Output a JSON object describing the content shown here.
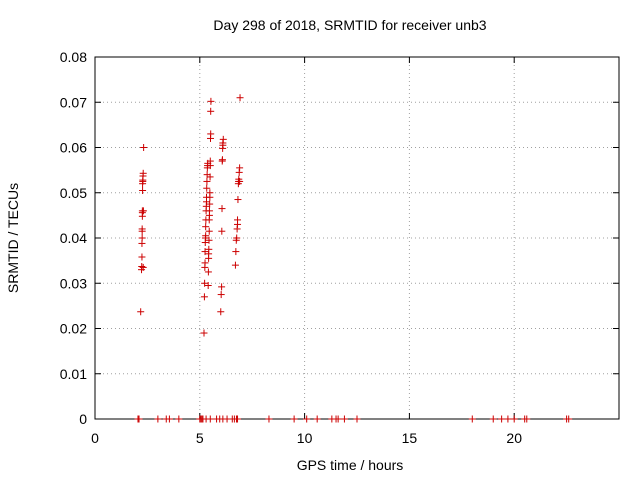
{
  "chart_data": {
    "type": "scatter",
    "title": "Day 298 of 2018, SRMTID for receiver unb3",
    "xlabel": "GPS time / hours",
    "ylabel": "SRMTID / TECUs",
    "xlim": [
      0,
      25
    ],
    "ylim": [
      0,
      0.08
    ],
    "x_ticks": [
      0,
      5,
      10,
      15,
      20
    ],
    "x_tick_labels": [
      "0",
      "5",
      "10",
      "15",
      "20"
    ],
    "y_ticks": [
      0,
      0.01,
      0.02,
      0.03,
      0.04,
      0.05,
      0.06,
      0.07,
      0.08
    ],
    "y_tick_labels": [
      "0",
      "0.01",
      "0.02",
      "0.03",
      "0.04",
      "0.05",
      "0.06",
      "0.07",
      "0.08"
    ],
    "grid": true,
    "marker": "+",
    "color": "#cc0000",
    "series": [
      {
        "name": "SRMTID",
        "x": [
          2.18,
          2.22,
          2.23,
          2.24,
          2.24,
          2.25,
          2.25,
          2.25,
          2.26,
          2.26,
          2.26,
          2.27,
          2.27,
          2.28,
          2.28,
          2.29,
          2.3,
          2.3,
          2.31,
          2.32,
          5.2,
          5.22,
          5.23,
          5.24,
          5.25,
          5.25,
          5.26,
          5.27,
          5.28,
          5.28,
          5.29,
          5.3,
          5.31,
          5.32,
          5.32,
          5.33,
          5.34,
          5.35,
          5.36,
          5.37,
          5.38,
          5.4,
          5.41,
          5.42,
          5.42,
          5.43,
          5.44,
          5.45,
          5.45,
          5.46,
          5.46,
          5.47,
          5.48,
          5.48,
          5.49,
          5.5,
          5.5,
          5.51,
          5.52,
          5.52,
          5.53,
          6.0,
          6.02,
          6.04,
          6.05,
          6.06,
          6.07,
          6.08,
          6.09,
          6.1,
          6.1,
          6.12,
          6.7,
          6.72,
          6.74,
          6.76,
          6.78,
          6.8,
          6.8,
          6.82,
          6.84,
          6.85,
          6.86,
          6.88,
          6.9,
          6.9,
          6.92,
          2.05,
          2.1,
          3.0,
          3.4,
          3.55,
          4.0,
          5.0,
          5.05,
          5.1,
          5.15,
          5.3,
          5.5,
          5.8,
          5.95,
          6.1,
          6.3,
          6.55,
          6.65,
          6.75,
          6.8,
          8.3,
          9.5,
          10.1,
          10.6,
          11.3,
          11.5,
          11.6,
          11.9,
          12.5,
          18.0,
          19.0,
          19.4,
          19.7,
          20.0,
          20.5,
          20.6,
          22.5,
          22.6
        ],
        "y": [
          0.0237,
          0.033,
          0.0337,
          0.0358,
          0.0388,
          0.04,
          0.0415,
          0.042,
          0.0448,
          0.0456,
          0.046,
          0.0505,
          0.052,
          0.0525,
          0.0528,
          0.0537,
          0.0543,
          0.0335,
          0.046,
          0.06,
          0.019,
          0.027,
          0.03,
          0.0335,
          0.0345,
          0.037,
          0.039,
          0.04,
          0.0405,
          0.0425,
          0.044,
          0.046,
          0.047,
          0.048,
          0.049,
          0.051,
          0.0525,
          0.054,
          0.0555,
          0.056,
          0.0565,
          0.0295,
          0.0325,
          0.0355,
          0.0365,
          0.0375,
          0.0395,
          0.0415,
          0.044,
          0.045,
          0.046,
          0.0475,
          0.049,
          0.05,
          0.0535,
          0.056,
          0.057,
          0.062,
          0.063,
          0.068,
          0.0702,
          0.0237,
          0.0275,
          0.0292,
          0.0415,
          0.0465,
          0.057,
          0.0573,
          0.0598,
          0.0605,
          0.061,
          0.0618,
          0.034,
          0.037,
          0.0395,
          0.04,
          0.042,
          0.043,
          0.044,
          0.0485,
          0.052,
          0.0525,
          0.053,
          0.0545,
          0.0555,
          0.0525,
          0.071,
          0,
          0,
          0,
          0,
          0,
          0,
          0,
          0,
          0,
          0,
          0,
          0,
          0,
          0,
          0,
          0,
          0,
          0,
          0,
          0,
          0,
          0,
          0,
          0,
          0,
          0,
          0,
          0,
          0,
          0,
          0,
          0,
          0,
          0,
          0,
          0,
          0,
          0
        ]
      }
    ]
  }
}
